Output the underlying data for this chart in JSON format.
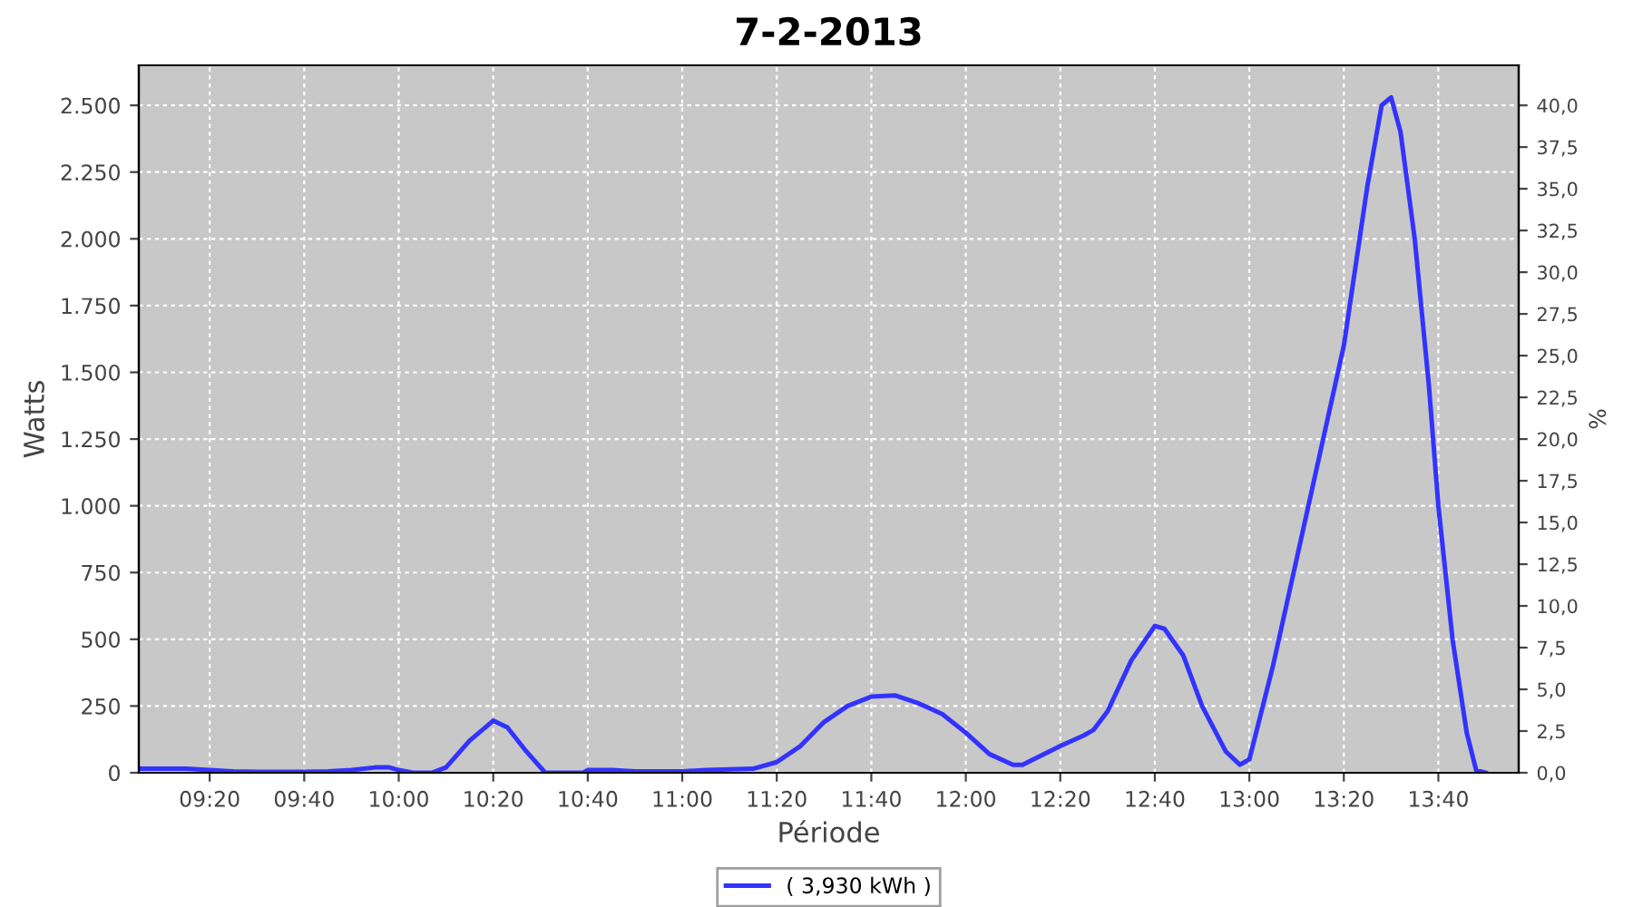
{
  "chart_data": {
    "type": "line",
    "title": "7-2-2013",
    "xlabel": "Période",
    "ylabel": "Watts",
    "y2label": "%",
    "x": [
      9.0833,
      9.25,
      9.3333,
      9.4167,
      9.5,
      9.6667,
      9.75,
      9.8333,
      9.9167,
      9.9667,
      10.0,
      10.05,
      10.1167,
      10.1667,
      10.25,
      10.3333,
      10.3833,
      10.45,
      10.5167,
      10.65,
      10.6667,
      10.75,
      10.8333,
      11.0,
      11.0833,
      11.25,
      11.3333,
      11.4167,
      11.5,
      11.5833,
      11.6667,
      11.75,
      11.8333,
      11.9167,
      12.0,
      12.0833,
      12.1667,
      12.2,
      12.3333,
      12.4167,
      12.45,
      12.5,
      12.5833,
      12.6667,
      12.7,
      12.7667,
      12.8333,
      12.9167,
      12.9667,
      13.0,
      13.0833,
      13.1667,
      13.25,
      13.3333,
      13.4167,
      13.4667,
      13.5,
      13.5333,
      13.5833,
      13.6333,
      13.6667,
      13.7167,
      13.7667,
      13.8,
      13.8333
    ],
    "series": [
      {
        "name": "( 3,930 kWh )",
        "color": "#3333ff",
        "values": [
          15,
          15,
          10,
          5,
          3,
          3,
          5,
          10,
          20,
          20,
          10,
          0,
          0,
          20,
          120,
          195,
          170,
          80,
          0,
          0,
          10,
          10,
          5,
          5,
          10,
          15,
          40,
          100,
          190,
          250,
          285,
          290,
          260,
          220,
          150,
          70,
          30,
          30,
          100,
          140,
          160,
          230,
          420,
          550,
          540,
          440,
          250,
          80,
          30,
          50,
          400,
          800,
          1200,
          1600,
          2200,
          2500,
          2530,
          2400,
          2000,
          1450,
          1000,
          500,
          150,
          10,
          0
        ]
      }
    ],
    "xlim": [
      9.0833,
      13.95
    ],
    "xticks": [
      {
        "value": 9.3333,
        "label": "09:20"
      },
      {
        "value": 9.6667,
        "label": "09:40"
      },
      {
        "value": 10.0,
        "label": "10:00"
      },
      {
        "value": 10.3333,
        "label": "10:20"
      },
      {
        "value": 10.6667,
        "label": "10:40"
      },
      {
        "value": 11.0,
        "label": "11:00"
      },
      {
        "value": 11.3333,
        "label": "11:20"
      },
      {
        "value": 11.6667,
        "label": "11:40"
      },
      {
        "value": 12.0,
        "label": "12:00"
      },
      {
        "value": 12.3333,
        "label": "12:20"
      },
      {
        "value": 12.6667,
        "label": "12:40"
      },
      {
        "value": 13.0,
        "label": "13:00"
      },
      {
        "value": 13.3333,
        "label": "13:20"
      },
      {
        "value": 13.6667,
        "label": "13:40"
      }
    ],
    "ylim": [
      0,
      2650
    ],
    "yticks": [
      0,
      250,
      500,
      750,
      {
        "value": 1000,
        "label": "1.000"
      },
      {
        "value": 1250,
        "label": "1.250"
      },
      {
        "value": 1500,
        "label": "1.500"
      },
      {
        "value": 1750,
        "label": "1.750"
      },
      {
        "value": 2000,
        "label": "2.000"
      },
      {
        "value": 2250,
        "label": "2.250"
      },
      {
        "value": 2500,
        "label": "2.500"
      }
    ],
    "y2lim": [
      0,
      42.4
    ],
    "y2ticks": [
      {
        "value": 0,
        "label": "0,0"
      },
      {
        "value": 2.5,
        "label": "2,5"
      },
      {
        "value": 5,
        "label": "5,0"
      },
      {
        "value": 7.5,
        "label": "7,5"
      },
      {
        "value": 10,
        "label": "10,0"
      },
      {
        "value": 12.5,
        "label": "12,5"
      },
      {
        "value": 15,
        "label": "15,0"
      },
      {
        "value": 17.5,
        "label": "17,5"
      },
      {
        "value": 20,
        "label": "20,0"
      },
      {
        "value": 22.5,
        "label": "22,5"
      },
      {
        "value": 25,
        "label": "25,0"
      },
      {
        "value": 27.5,
        "label": "27,5"
      },
      {
        "value": 30,
        "label": "30,0"
      },
      {
        "value": 32.5,
        "label": "32,5"
      },
      {
        "value": 35,
        "label": "35,0"
      },
      {
        "value": 37.5,
        "label": "37,5"
      },
      {
        "value": 40,
        "label": "40,0"
      }
    ],
    "grid": true,
    "legend": "bottom",
    "marker": "none",
    "line_style": "solid"
  }
}
